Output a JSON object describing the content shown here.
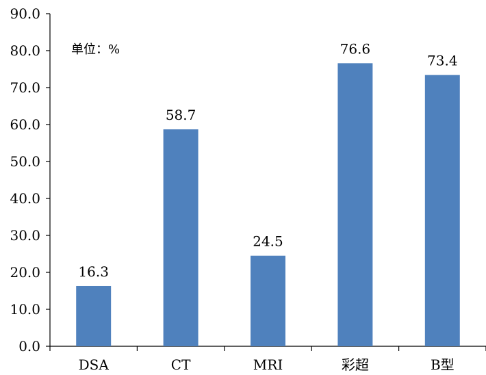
{
  "chart_data": {
    "type": "bar",
    "categories": [
      "DSA",
      "CT",
      "MRI",
      "彩超",
      "B型"
    ],
    "values": [
      16.3,
      58.7,
      24.5,
      76.6,
      73.4
    ],
    "data_labels": [
      "16.3",
      "58.7",
      "24.5",
      "76.6",
      "73.4"
    ],
    "ylim": [
      0,
      90
    ],
    "yticks": [
      "0.0",
      "10.0",
      "20.0",
      "30.0",
      "40.0",
      "50.0",
      "60.0",
      "70.0",
      "80.0",
      "90.0"
    ],
    "unit_label": "单位：%",
    "grid": false,
    "legend": "none",
    "bar_color": "#4F81BD"
  }
}
